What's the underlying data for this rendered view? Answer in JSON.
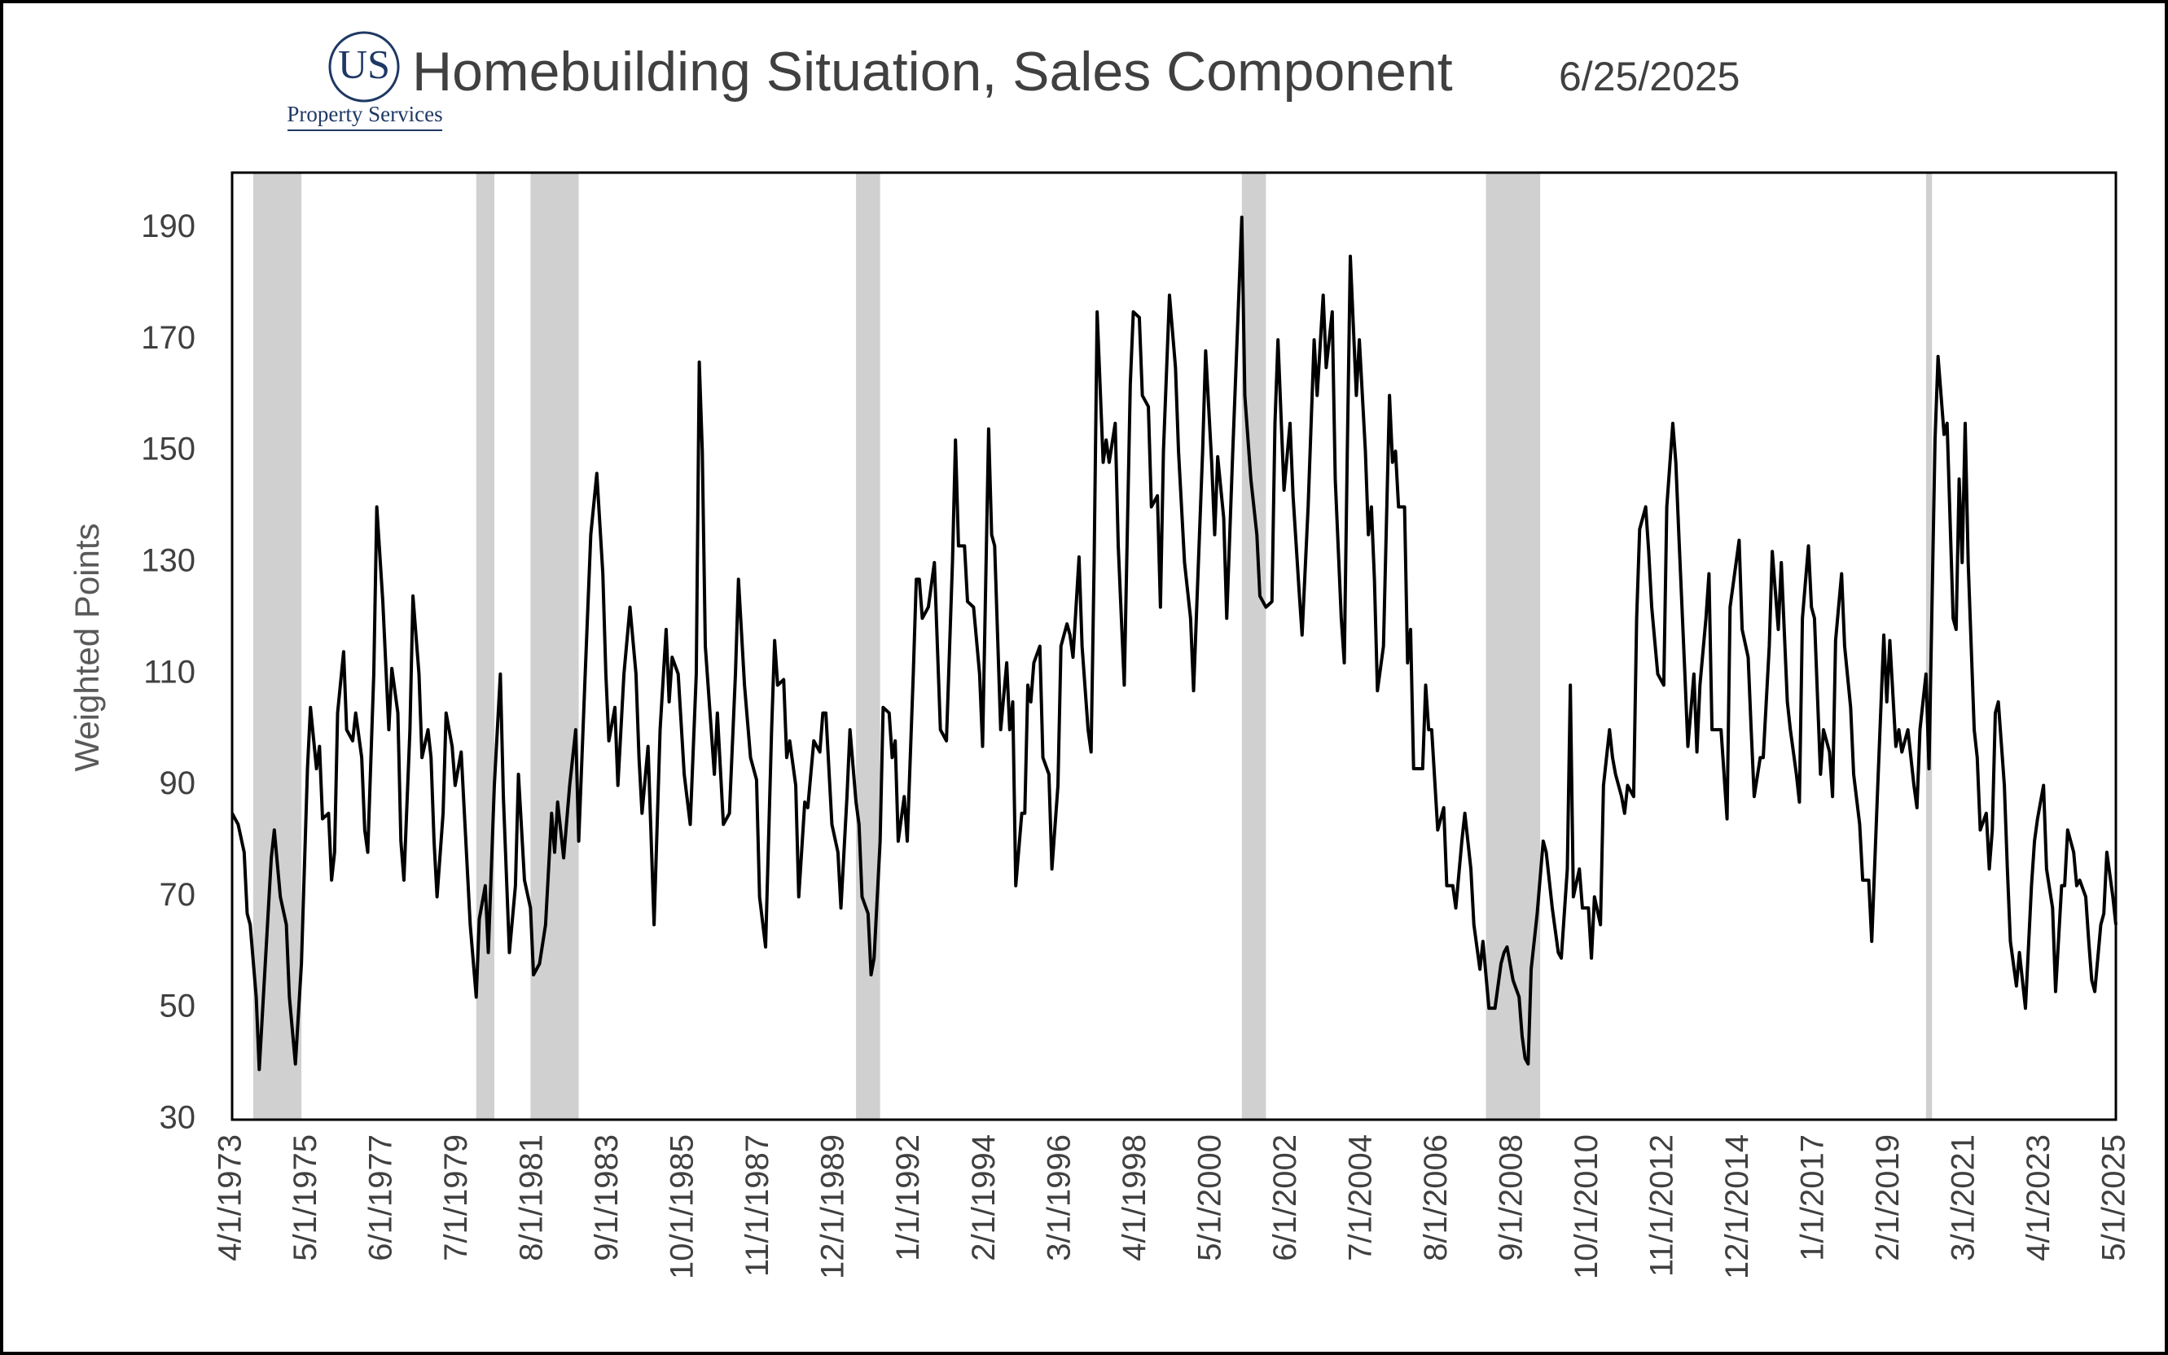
{
  "chart_data": {
    "type": "line",
    "title": "Homebuilding Situation, Sales Component",
    "subtitle": "6/25/2025",
    "logo": {
      "initials": "US",
      "name": "Property Services"
    },
    "y_label": "Weighted Points",
    "ylim": [
      30,
      200
    ],
    "yticks": [
      30,
      50,
      70,
      90,
      110,
      130,
      150,
      170,
      190
    ],
    "xlim": [
      "4/1/1973",
      "5/1/2025"
    ],
    "xticks": [
      "4/1/1973",
      "5/1/1975",
      "6/1/1977",
      "7/1/1979",
      "8/1/1981",
      "9/1/1983",
      "10/1/1985",
      "11/1/1987",
      "12/1/1989",
      "1/1/1992",
      "2/1/1994",
      "3/1/1996",
      "4/1/1998",
      "5/1/2000",
      "6/1/2002",
      "7/1/2004",
      "8/1/2006",
      "9/1/2008",
      "10/1/2010",
      "11/1/2012",
      "12/1/2014",
      "1/1/2017",
      "2/1/2019",
      "3/1/2021",
      "4/1/2023",
      "5/1/2025"
    ],
    "grid": false,
    "shaded_periods": [
      {
        "start": "11/1/1973",
        "end": "3/1/1975"
      },
      {
        "start": "1/1/1980",
        "end": "7/1/1980"
      },
      {
        "start": "7/1/1981",
        "end": "11/1/1982"
      },
      {
        "start": "7/1/1990",
        "end": "3/1/1991"
      },
      {
        "start": "3/1/2001",
        "end": "11/1/2001"
      },
      {
        "start": "12/1/2007",
        "end": "6/1/2009"
      },
      {
        "start": "2/1/2020",
        "end": "4/1/2020"
      }
    ],
    "shade_color": "#d0d0d0",
    "x": [
      "4/1/1973",
      "6/1/1973",
      "8/1/1973",
      "9/1/1973",
      "10/1/1973",
      "12/1/1973",
      "1/1/1974",
      "3/1/1974",
      "5/1/1974",
      "6/1/1974",
      "8/1/1974",
      "10/1/1974",
      "11/1/1974",
      "1/1/1975",
      "3/1/1975",
      "5/1/1975",
      "6/1/1975",
      "8/1/1975",
      "9/1/1975",
      "10/1/1975",
      "12/1/1975",
      "1/1/1976",
      "2/1/1976",
      "3/1/1976",
      "5/1/1976",
      "6/1/1976",
      "8/1/1976",
      "9/1/1976",
      "11/1/1976",
      "12/1/1976",
      "1/1/1977",
      "3/1/1977",
      "4/1/1977",
      "6/1/1977",
      "8/1/1977",
      "9/1/1977",
      "11/1/1977",
      "12/1/1977",
      "1/1/1978",
      "3/1/1978",
      "4/1/1978",
      "6/1/1978",
      "7/1/1978",
      "9/1/1978",
      "10/1/1978",
      "11/1/1978",
      "12/1/1978",
      "2/1/1979",
      "3/1/1979",
      "5/1/1979",
      "6/1/1979",
      "8/1/1979",
      "11/1/1979",
      "1/1/1980",
      "2/1/1980",
      "4/1/1980",
      "5/1/1980",
      "7/1/1980",
      "9/1/1980",
      "10/1/1980",
      "12/1/1980",
      "2/1/1981",
      "3/1/1981",
      "5/1/1981",
      "7/1/1981",
      "8/1/1981",
      "10/1/1981",
      "12/1/1981",
      "2/1/1982",
      "3/1/1982",
      "4/1/1982",
      "6/1/1982",
      "8/1/1982",
      "10/1/1982",
      "11/1/1982",
      "1/1/1983",
      "3/1/1983",
      "5/1/1983",
      "7/1/1983",
      "8/1/1983",
      "9/1/1983",
      "11/1/1983",
      "12/1/1983",
      "2/1/1984",
      "4/1/1984",
      "6/1/1984",
      "7/1/1984",
      "8/1/1984",
      "10/1/1984",
      "12/1/1984",
      "2/1/1985",
      "4/1/1985",
      "5/1/1985",
      "6/1/1985",
      "8/1/1985",
      "10/1/1985",
      "12/1/1985",
      "2/1/1986",
      "3/1/1986",
      "4/1/1986",
      "5/1/1986",
      "8/1/1986",
      "9/1/1986",
      "11/1/1986",
      "1/1/1987",
      "3/1/1987",
      "4/1/1987",
      "6/1/1987",
      "8/1/1987",
      "10/1/1987",
      "11/1/1987",
      "1/1/1988",
      "3/1/1988",
      "4/1/1988",
      "5/1/1988",
      "7/1/1988",
      "8/1/1988",
      "9/1/1988",
      "11/1/1988",
      "12/1/1988",
      "2/1/1989",
      "3/1/1989",
      "5/1/1989",
      "7/1/1989",
      "8/1/1989",
      "9/1/1989",
      "11/1/1989",
      "1/1/1990",
      "2/1/1990",
      "4/1/1990",
      "5/1/1990",
      "7/1/1990",
      "8/1/1990",
      "9/1/1990",
      "11/1/1990",
      "12/1/1990",
      "1/1/1991",
      "3/1/1991",
      "4/1/1991",
      "6/1/1991",
      "7/1/1991",
      "8/1/1991",
      "9/1/1991",
      "11/1/1991",
      "12/1/1991",
      "2/1/1992",
      "3/1/1992",
      "4/1/1992",
      "5/1/1992",
      "7/1/1992",
      "9/1/1992",
      "10/1/1992",
      "11/1/1992",
      "1/1/1993",
      "3/1/1993",
      "4/1/1993",
      "5/1/1993",
      "7/1/1993",
      "8/1/1993",
      "10/1/1993",
      "12/1/1993",
      "1/1/1994",
      "3/1/1994",
      "4/1/1994",
      "5/1/1994",
      "7/1/1994",
      "9/1/1994",
      "10/1/1994",
      "11/1/1994",
      "12/1/1994",
      "2/1/1995",
      "3/1/1995",
      "4/1/1995",
      "5/1/1995",
      "6/1/1995",
      "8/1/1995",
      "9/1/1995",
      "11/1/1995",
      "12/1/1995",
      "2/1/1996",
      "3/1/1996",
      "5/1/1996",
      "6/1/1996",
      "7/1/1996",
      "9/1/1996",
      "10/1/1996",
      "12/1/1996",
      "1/1/1997",
      "2/1/1997",
      "3/1/1997",
      "5/1/1997",
      "6/1/1997",
      "7/1/1997",
      "9/1/1997",
      "10/1/1997",
      "12/1/1997",
      "2/1/1998",
      "3/1/1998",
      "5/1/1998",
      "6/1/1998",
      "8/1/1998",
      "9/1/1998",
      "11/1/1998",
      "12/1/1998",
      "1/1/1999",
      "3/1/1999",
      "5/1/1999",
      "6/1/1999",
      "8/1/1999",
      "10/1/1999",
      "11/1/1999",
      "2/1/2000",
      "3/1/2000",
      "5/1/2000",
      "6/1/2000",
      "7/1/2000",
      "9/1/2000",
      "10/1/2000",
      "12/1/2000",
      "3/1/2001",
      "4/1/2001",
      "6/1/2001",
      "8/1/2001",
      "9/1/2001",
      "11/1/2001",
      "1/1/2002",
      "2/1/2002",
      "3/1/2002",
      "5/1/2002",
      "7/1/2002",
      "8/1/2002",
      "10/1/2002",
      "11/1/2002",
      "1/1/2003",
      "3/1/2003",
      "4/1/2003",
      "6/1/2003",
      "7/1/2003",
      "9/1/2003",
      "10/1/2003",
      "12/1/2003",
      "1/1/2004",
      "2/1/2004",
      "3/1/2004",
      "5/1/2004",
      "6/1/2004",
      "8/1/2004",
      "9/1/2004",
      "10/1/2004",
      "11/1/2004",
      "12/1/2004",
      "2/1/2005",
      "4/1/2005",
      "5/1/2005",
      "6/1/2005",
      "7/1/2005",
      "9/1/2005",
      "10/1/2005",
      "11/1/2005",
      "12/1/2005",
      "3/1/2006",
      "4/1/2006",
      "5/1/2006",
      "6/1/2006",
      "8/1/2006",
      "10/1/2006",
      "11/1/2006",
      "1/1/2007",
      "2/1/2007",
      "4/1/2007",
      "5/1/2007",
      "7/1/2007",
      "8/1/2007",
      "10/1/2007",
      "11/1/2007",
      "1/1/2008",
      "3/1/2008",
      "5/1/2008",
      "6/1/2008",
      "7/1/2008",
      "9/1/2008",
      "11/1/2008",
      "12/1/2008",
      "1/1/2009",
      "2/1/2009",
      "3/1/2009",
      "5/1/2009",
      "7/1/2009",
      "8/1/2009",
      "10/1/2009",
      "12/1/2009",
      "1/1/2010",
      "3/1/2010",
      "4/1/2010",
      "5/1/2010",
      "7/1/2010",
      "8/1/2010",
      "10/1/2010",
      "11/1/2010",
      "12/1/2010",
      "2/1/2011",
      "3/1/2011",
      "5/1/2011",
      "6/1/2011",
      "7/1/2011",
      "9/1/2011",
      "10/1/2011",
      "11/1/2011",
      "1/1/2012",
      "2/1/2012",
      "3/1/2012",
      "5/1/2012",
      "6/1/2012",
      "7/1/2012",
      "9/1/2012",
      "11/1/2012",
      "12/1/2012",
      "2/1/2013",
      "3/1/2013",
      "4/1/2013",
      "6/1/2013",
      "7/1/2013",
      "9/1/2013",
      "10/1/2013",
      "11/1/2013",
      "1/1/2014",
      "2/1/2014",
      "3/1/2014",
      "6/1/2014",
      "8/1/2014",
      "9/1/2014",
      "11/1/2014",
      "12/1/2014",
      "1/1/2015",
      "3/1/2015",
      "4/1/2015",
      "5/1/2015",
      "7/1/2015",
      "8/1/2015",
      "10/1/2015",
      "11/1/2015",
      "1/1/2016",
      "2/1/2016",
      "4/1/2016",
      "5/1/2016",
      "7/1/2016",
      "8/1/2016",
      "9/1/2016",
      "11/1/2016",
      "12/1/2016",
      "1/1/2017",
      "3/1/2017",
      "4/1/2017",
      "6/1/2017",
      "7/1/2017",
      "8/1/2017",
      "10/1/2017",
      "11/1/2017",
      "1/1/2018",
      "2/1/2018",
      "4/1/2018",
      "5/1/2018",
      "7/1/2018",
      "8/1/2018",
      "10/1/2018",
      "12/1/2018",
      "1/1/2019",
      "2/1/2019",
      "4/1/2019",
      "5/1/2019",
      "6/1/2019",
      "8/1/2019",
      "10/1/2019",
      "11/1/2019",
      "12/1/2019",
      "2/1/2020",
      "3/1/2020",
      "5/1/2020",
      "6/1/2020",
      "8/1/2020",
      "9/1/2020",
      "11/1/2020",
      "12/1/2020",
      "1/1/2021",
      "2/1/2021",
      "3/1/2021",
      "4/1/2021",
      "6/1/2021",
      "7/1/2021",
      "8/1/2021",
      "10/1/2021",
      "11/1/2021",
      "12/1/2021",
      "1/1/2022",
      "2/1/2022",
      "4/1/2022",
      "5/1/2022",
      "6/1/2022",
      "8/1/2022",
      "9/1/2022",
      "10/1/2022",
      "11/1/2022",
      "1/1/2023",
      "2/1/2023",
      "3/1/2023",
      "5/1/2023",
      "6/1/2023",
      "8/1/2023",
      "9/1/2023",
      "11/1/2023",
      "12/1/2023",
      "1/1/2024",
      "3/1/2024",
      "4/1/2024",
      "5/1/2024",
      "7/1/2024",
      "8/1/2024",
      "9/1/2024",
      "10/1/2024",
      "12/1/2024",
      "1/1/2025",
      "2/1/2025",
      "4/1/2025",
      "5/1/2025"
    ],
    "series": [
      {
        "name": "Sales Component",
        "color": "#000000",
        "values": [
          85,
          83,
          78,
          67,
          65,
          52,
          39,
          58,
          77,
          82,
          70,
          65,
          52,
          40,
          58,
          93,
          104,
          93,
          97,
          84,
          85,
          73,
          78,
          103,
          114,
          100,
          98,
          103,
          95,
          82,
          78,
          110,
          140,
          123,
          100,
          111,
          103,
          80,
          73,
          100,
          124,
          110,
          95,
          100,
          95,
          80,
          70,
          85,
          103,
          97,
          90,
          96,
          65,
          52,
          66,
          72,
          60,
          90,
          110,
          88,
          60,
          72,
          92,
          73,
          68,
          56,
          58,
          65,
          85,
          78,
          87,
          77,
          90,
          100,
          80,
          108,
          135,
          146,
          128,
          110,
          98,
          104,
          90,
          110,
          122,
          110,
          95,
          85,
          97,
          65,
          100,
          118,
          105,
          113,
          110,
          92,
          83,
          110,
          166,
          150,
          115,
          92,
          103,
          83,
          85,
          110,
          127,
          108,
          95,
          91,
          70,
          61,
          100,
          116,
          108,
          109,
          95,
          98,
          90,
          70,
          87,
          86,
          98,
          96,
          103,
          103,
          83,
          78,
          68,
          88,
          100,
          87,
          83,
          70,
          67,
          56,
          59,
          80,
          104,
          103,
          95,
          98,
          80,
          88,
          80,
          110,
          127,
          127,
          120,
          122,
          130,
          115,
          100,
          98,
          130,
          152,
          133,
          133,
          123,
          122,
          110,
          97,
          154,
          135,
          133,
          100,
          112,
          100,
          105,
          72,
          85,
          85,
          108,
          105,
          112,
          115,
          95,
          92,
          75,
          90,
          115,
          119,
          117,
          113,
          131,
          115,
          100,
          96,
          130,
          175,
          148,
          152,
          148,
          155,
          133,
          108,
          162,
          175,
          174,
          160,
          158,
          140,
          142,
          122,
          150,
          178,
          165,
          150,
          130,
          120,
          107,
          150,
          168,
          148,
          135,
          149,
          138,
          120,
          150,
          192,
          160,
          145,
          135,
          124,
          122,
          123,
          155,
          170,
          143,
          155,
          142,
          125,
          117,
          140,
          170,
          160,
          178,
          165,
          175,
          145,
          120,
          112,
          150,
          185,
          160,
          170,
          150,
          135,
          140,
          127,
          107,
          115,
          160,
          148,
          150,
          140,
          140,
          112,
          118,
          93,
          93,
          108,
          100,
          100,
          82,
          86,
          72,
          72,
          68,
          80,
          85,
          75,
          65,
          57,
          62,
          50,
          50,
          58,
          60,
          61,
          55,
          52,
          45,
          41,
          40,
          57,
          67,
          80,
          78,
          68,
          60,
          59,
          75,
          108,
          70,
          75,
          68,
          68,
          59,
          70,
          65,
          90,
          100,
          95,
          92,
          88,
          85,
          90,
          88,
          120,
          136,
          140,
          132,
          122,
          110,
          108,
          140,
          155,
          148,
          135,
          110,
          97,
          110,
          96,
          108,
          120,
          128,
          100,
          100,
          84,
          122,
          130,
          134,
          118,
          113,
          100,
          88,
          95,
          95,
          115,
          132,
          118,
          130,
          105,
          100,
          92,
          87,
          120,
          133,
          122,
          120,
          92,
          100,
          96,
          88,
          116,
          128,
          115,
          104,
          92,
          83,
          73,
          73,
          62,
          90,
          117,
          105,
          116,
          97,
          100,
          96,
          100,
          90,
          86,
          100,
          110,
          93,
          152,
          167,
          153,
          155,
          120,
          118,
          145,
          130,
          155,
          130,
          100,
          95,
          82,
          85,
          75,
          82,
          103,
          105,
          90,
          75,
          62,
          54,
          60,
          55,
          50,
          72,
          80,
          84,
          90,
          75,
          68,
          53,
          72,
          72,
          82,
          78,
          72,
          73,
          70,
          62,
          55,
          53,
          65,
          67,
          78,
          70,
          65
        ]
      }
    ]
  }
}
